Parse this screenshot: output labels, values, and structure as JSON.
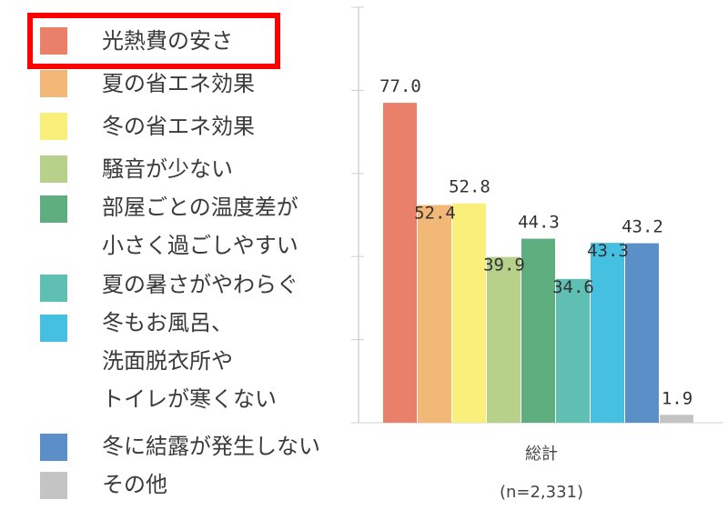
{
  "chart_data": {
    "type": "bar",
    "category": "総計",
    "sample_note": "(n=2,331)",
    "ylim": [
      0,
      100
    ],
    "grid": true,
    "legend_position": "left",
    "highlighted_series": "光熱費の安さ",
    "series": [
      {
        "name": "光熱費の安さ",
        "value": 77.0,
        "label": "77.0",
        "color": "#e8806a"
      },
      {
        "name": "夏の省エネ効果",
        "value": 52.4,
        "label": "52.4",
        "color": "#f2b877"
      },
      {
        "name": "冬の省エネ効果",
        "value": 52.8,
        "label": "52.8",
        "color": "#fbef7c"
      },
      {
        "name": "騒音が少ない",
        "value": 39.9,
        "label": "39.9",
        "color": "#b8d18a"
      },
      {
        "name": "部屋ごとの温度差が小さく過ごしやすい",
        "value": 44.3,
        "label": "44.3",
        "color": "#5fae7f"
      },
      {
        "name": "夏の暑さがやわらぐ",
        "value": 34.6,
        "label": "34.6",
        "color": "#5fbfb2"
      },
      {
        "name": "冬もお風呂、洗面脱衣所やトイレが寒くない",
        "value": 43.3,
        "label": "43.3",
        "color": "#45c0e0"
      },
      {
        "name": "冬に結露が発生しない",
        "value": 43.2,
        "label": "43.2",
        "color": "#5b8fc8"
      },
      {
        "name": "その他",
        "value": 1.9,
        "label": "1.9",
        "color": "#c4c4c4"
      }
    ]
  },
  "legend": [
    {
      "lines": [
        "光熱費の安さ"
      ],
      "color": "#e8806a"
    },
    {
      "lines": [
        "夏の省エネ効果"
      ],
      "color": "#f2b877"
    },
    {
      "lines": [
        "冬の省エネ効果"
      ],
      "color": "#fbef7c"
    },
    {
      "lines": [
        "騒音が少ない"
      ],
      "color": "#b8d18a"
    },
    {
      "lines": [
        "部屋ごとの温度差が",
        "小さく過ごしやすい"
      ],
      "color": "#5fae7f"
    },
    {
      "lines": [
        "夏の暑さがやわらぐ"
      ],
      "color": "#5fbfb2"
    },
    {
      "lines": [
        "冬もお風呂、",
        "洗面脱衣所や",
        "トイレが寒くない"
      ],
      "color": "#45c0e0"
    },
    {
      "lines": [
        "冬に結露が発生しない"
      ],
      "color": "#5b8fc8"
    },
    {
      "lines": [
        "その他"
      ],
      "color": "#c4c4c4"
    }
  ]
}
